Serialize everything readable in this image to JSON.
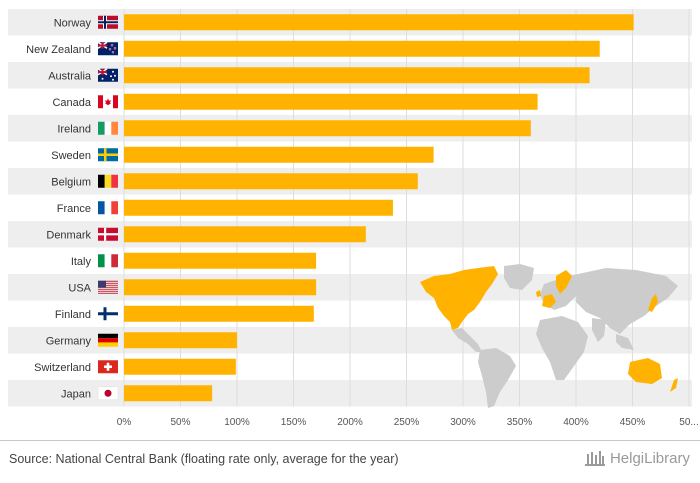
{
  "chart_data": {
    "type": "bar",
    "orientation": "horizontal",
    "categories": [
      "Norway",
      "New Zealand",
      "Australia",
      "Canada",
      "Ireland",
      "Sweden",
      "Belgium",
      "France",
      "Denmark",
      "Italy",
      "USA",
      "Finland",
      "Germany",
      "Switzerland",
      "Japan"
    ],
    "flags": [
      "flag-norway",
      "flag-new-zealand",
      "flag-australia",
      "flag-canada",
      "flag-ireland",
      "flag-sweden",
      "flag-belgium",
      "flag-france",
      "flag-denmark",
      "flag-italy",
      "flag-usa",
      "flag-finland",
      "flag-germany",
      "flag-switzerland",
      "flag-japan"
    ],
    "values": [
      451,
      421,
      412,
      366,
      360,
      274,
      260,
      238,
      214,
      170,
      170,
      168,
      100,
      99,
      78
    ],
    "xlim": [
      0,
      500
    ],
    "xticks": [
      "0%",
      "50%",
      "100%",
      "150%",
      "200%",
      "250%",
      "300%",
      "350%",
      "400%",
      "450%",
      "50..."
    ],
    "bar_color": "#ffb300",
    "stripe_color": "#eeeeee",
    "grid": true,
    "inset_map": "world-map-highlighting-countries",
    "map_highlight_color": "#ffb300",
    "map_base_color": "#cccccc"
  },
  "footer": {
    "source": "Source: National Central Bank (floating rate only, average for the year)",
    "brand": "HelgiLibrary"
  }
}
